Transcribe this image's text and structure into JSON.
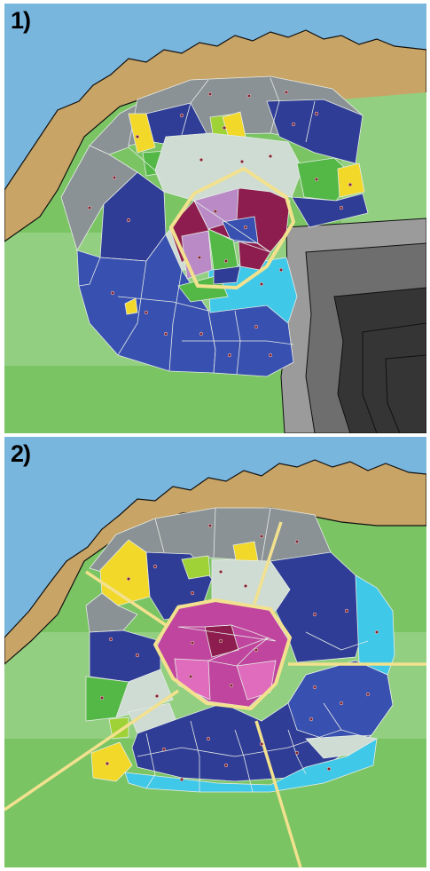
{
  "panels": [
    {
      "label": "1)"
    },
    {
      "label": "2)"
    }
  ],
  "colors": {
    "sea": "#79b6de",
    "coast": "#c8a466",
    "land_light": "#92cf80",
    "land": "#7ac464",
    "cell_navy": "#303d97",
    "cell_blue": "#3850b0",
    "cell_grey": "#8a9296",
    "cell_pale": "#cfdcd3",
    "cell_cyan": "#3fc8e8",
    "cell_green": "#54b846",
    "cell_lime": "#9fd236",
    "cell_yellow": "#f2d829",
    "cell_maroon": "#8d1d4e",
    "cell_purple": "#b98ac6",
    "cell_magenta": "#c0459e",
    "cell_pink": "#df6cbc",
    "outline": "#f2e18e",
    "relief_dark": "#353535",
    "relief_mid": "#6e6e6e",
    "relief_light": "#9b9b9b"
  }
}
